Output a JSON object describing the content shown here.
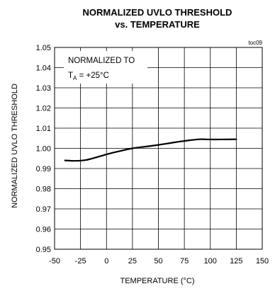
{
  "chart_data": {
    "type": "line",
    "title_line1": "NORMALIZED UVLO THRESHOLD",
    "title_line2": "vs. TEMPERATURE",
    "figure_code": "toc09",
    "xlabel": "TEMPERATURE (°C)",
    "ylabel": "NORMALIZED UVLO THRESHOLD",
    "annotation_line1": "NORMALIZED TO",
    "annotation_line2_main": "T",
    "annotation_line2_sub": "A",
    "annotation_line2_rest": " = +25°C",
    "xlim": [
      -50,
      150
    ],
    "ylim": [
      0.95,
      1.05
    ],
    "x_ticks": [
      "-50",
      "-25",
      "0",
      "25",
      "50",
      "75",
      "100",
      "125",
      "150"
    ],
    "y_ticks": [
      "1.05",
      "1.04",
      "1.03",
      "1.02",
      "1.01",
      "1.00",
      "0.99",
      "0.98",
      "0.97",
      "0.96",
      "0.95"
    ],
    "grid": true,
    "series": [
      {
        "x": [
          -40,
          -30,
          -20,
          -10,
          0,
          10,
          25,
          40,
          50,
          60,
          70,
          80,
          90,
          100,
          110,
          125
        ],
        "y": [
          0.994,
          0.9938,
          0.9942,
          0.9955,
          0.997,
          0.9983,
          1.0,
          1.001,
          1.0017,
          1.0025,
          1.0033,
          1.004,
          1.0045,
          1.0044,
          1.0044,
          1.0045
        ]
      }
    ]
  }
}
